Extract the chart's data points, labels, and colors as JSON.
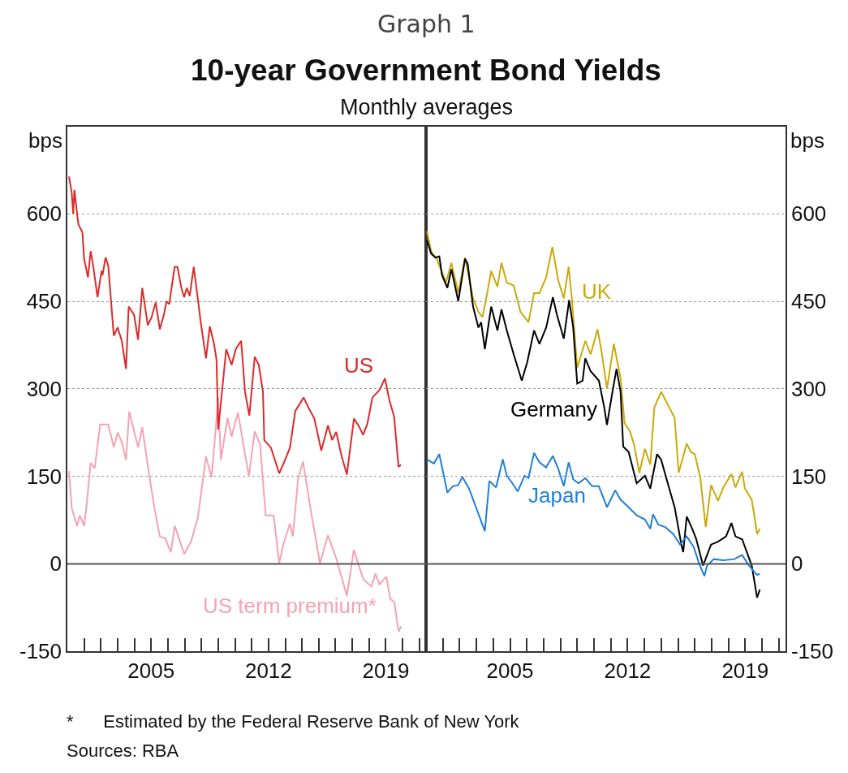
{
  "chart_data": [
    {
      "type": "line",
      "title": "10-year Government Bond Yields",
      "subtitle": "Monthly averages",
      "ylabel": "bps",
      "annotations": [
        "Graph 1",
        "*      Estimated by the Federal Reserve Bank of New York",
        "Sources: RBA"
      ],
      "xlim": [
        2000,
        2021.4
      ],
      "ylim": [
        -150,
        750
      ],
      "yticks": [
        -150,
        0,
        150,
        300,
        450,
        600
      ],
      "xticks": [
        {
          "value": 2001,
          "label": null
        },
        {
          "value": 2002,
          "label": null
        },
        {
          "value": 2003,
          "label": null
        },
        {
          "value": 2004,
          "label": null
        },
        2005,
        {
          "value": 2006,
          "label": null
        },
        {
          "value": 2007,
          "label": null
        },
        {
          "value": 2008,
          "label": null
        },
        {
          "value": 2009,
          "label": null
        },
        {
          "value": 2010,
          "label": null
        },
        {
          "value": 2011,
          "label": null
        },
        2012,
        {
          "value": 2013,
          "label": null
        },
        {
          "value": 2014,
          "label": null
        },
        {
          "value": 2015,
          "label": null
        },
        {
          "value": 2016,
          "label": null
        },
        {
          "value": 2017,
          "label": null
        },
        {
          "value": 2018,
          "label": null
        },
        2019,
        {
          "value": 2020,
          "label": null
        },
        {
          "value": 2021,
          "label": null
        }
      ],
      "grid": "y",
      "legend": false,
      "marker": "none",
      "line_style": "solid",
      "ref_lines": [
        {
          "axis": "y",
          "value": 0,
          "color": "#555555"
        }
      ],
      "series": [
        {
          "name": "US term premium*",
          "color": "#f4a3b5",
          "x": [
            2000.1,
            2000.26,
            2000.58,
            2000.74,
            2001.0,
            2001.15,
            2001.39,
            2001.63,
            2001.96,
            2002.44,
            2002.77,
            2003.0,
            2003.25,
            2003.5,
            2003.69,
            2004.22,
            2004.47,
            2004.87,
            2005.19,
            2005.52,
            2005.84,
            2006.17,
            2006.41,
            2006.97,
            2007.38,
            2007.78,
            2008.27,
            2008.6,
            2008.84,
            2009.0,
            2009.16,
            2009.56,
            2009.8,
            2010.18,
            2010.53,
            2010.83,
            2011.18,
            2011.5,
            2011.83,
            2012.31,
            2012.64,
            2012.88,
            2013.28,
            2013.45,
            2013.77,
            2014.06,
            2014.5,
            2015.07,
            2015.55,
            2016.04,
            2016.68,
            2017.09,
            2017.65,
            2018.14,
            2018.38,
            2018.62,
            2019.03,
            2019.27,
            2019.51,
            2019.76,
            2019.92
          ],
          "values": [
            159,
            96,
            65,
            83,
            65,
            101,
            173,
            164,
            239,
            239,
            200,
            225,
            209,
            178,
            261,
            200,
            234,
            155,
            96,
            47,
            44,
            20,
            65,
            17,
            38,
            78,
            184,
            148,
            227,
            285,
            178,
            250,
            218,
            259,
            200,
            150,
            227,
            205,
            83,
            83,
            1,
            33,
            69,
            47,
            146,
            175,
            96,
            1,
            49,
            10,
            -55,
            24,
            -26,
            -39,
            -17,
            -35,
            -22,
            -60,
            -66,
            -116,
            -107
          ]
        },
        {
          "name": "US",
          "color": "#dc2a2a",
          "x": [
            2000.1,
            2000.26,
            2000.35,
            2000.42,
            2000.58,
            2000.66,
            2000.9,
            2001.0,
            2001.23,
            2001.39,
            2001.55,
            2001.8,
            2002.04,
            2002.1,
            2002.28,
            2002.44,
            2002.77,
            2003.0,
            2003.25,
            2003.5,
            2003.66,
            2003.98,
            2004.22,
            2004.47,
            2004.8,
            2005.03,
            2005.27,
            2005.52,
            2005.76,
            2005.92,
            2006.08,
            2006.4,
            2006.57,
            2006.8,
            2006.97,
            2007.13,
            2007.3,
            2007.54,
            2007.78,
            2007.95,
            2008.27,
            2008.5,
            2008.75,
            2008.9,
            2009.0,
            2009.48,
            2009.8,
            2010.05,
            2010.37,
            2010.6,
            2010.86,
            2011.18,
            2011.42,
            2011.67,
            2011.75,
            2012.15,
            2012.64,
            2012.96,
            2013.28,
            2013.6,
            2014.1,
            2014.4,
            2014.74,
            2015.15,
            2015.55,
            2015.8,
            2016.04,
            2016.36,
            2016.68,
            2017.1,
            2017.41,
            2017.65,
            2017.9,
            2018.2,
            2018.63,
            2018.95,
            2019.2,
            2019.5,
            2019.76,
            2019.9
          ],
          "values": [
            664,
            636,
            600,
            641,
            600,
            582,
            568,
            523,
            491,
            536,
            509,
            457,
            502,
            495,
            525,
            511,
            391,
            405,
            382,
            334,
            441,
            427,
            384,
            473,
            409,
            423,
            448,
            402,
            427,
            450,
            445,
            509,
            509,
            473,
            457,
            473,
            459,
            509,
            455,
            416,
            352,
            407,
            377,
            350,
            230,
            368,
            341,
            368,
            382,
            295,
            254,
            355,
            341,
            295,
            212,
            199,
            155,
            176,
            199,
            262,
            285,
            267,
            249,
            194,
            237,
            212,
            226,
            185,
            153,
            249,
            235,
            221,
            240,
            285,
            298,
            318,
            282,
            252,
            166,
            170
          ]
        }
      ]
    },
    {
      "type": "line",
      "ylabel": "bps",
      "xlim": [
        2000,
        2021.4
      ],
      "ylim": [
        -150,
        750
      ],
      "yticks": [
        -150,
        0,
        150,
        300,
        450,
        600
      ],
      "xticks": [
        {
          "value": 2001,
          "label": null
        },
        {
          "value": 2002,
          "label": null
        },
        {
          "value": 2003,
          "label": null
        },
        {
          "value": 2004,
          "label": null
        },
        2005,
        {
          "value": 2006,
          "label": null
        },
        {
          "value": 2007,
          "label": null
        },
        {
          "value": 2008,
          "label": null
        },
        {
          "value": 2009,
          "label": null
        },
        {
          "value": 2010,
          "label": null
        },
        {
          "value": 2011,
          "label": null
        },
        2012,
        {
          "value": 2013,
          "label": null
        },
        {
          "value": 2014,
          "label": null
        },
        {
          "value": 2015,
          "label": null
        },
        {
          "value": 2016,
          "label": null
        },
        {
          "value": 2017,
          "label": null
        },
        {
          "value": 2018,
          "label": null
        },
        2019,
        {
          "value": 2020,
          "label": null
        },
        {
          "value": 2021,
          "label": null
        }
      ],
      "grid": "y",
      "legend": false,
      "marker": "none",
      "line_style": "solid",
      "ref_lines": [
        {
          "axis": "y",
          "value": 0,
          "color": "#555555"
        }
      ],
      "series": [
        {
          "name": "UK",
          "color": "#c9aa0a",
          "x": [
            2000.06,
            2000.3,
            2000.63,
            2000.95,
            2001.19,
            2001.51,
            2001.92,
            2002.32,
            2002.8,
            2003.12,
            2003.36,
            2003.61,
            2003.88,
            2004.25,
            2004.49,
            2004.81,
            2005.22,
            2005.62,
            2006.1,
            2006.43,
            2006.75,
            2007.15,
            2007.52,
            2007.87,
            2008.2,
            2008.49,
            2008.68,
            2009.0,
            2009.24,
            2009.48,
            2009.8,
            2010.21,
            2010.45,
            2010.77,
            2011.18,
            2011.58,
            2011.82,
            2012.14,
            2012.38,
            2012.7,
            2013.03,
            2013.35,
            2013.59,
            2014.0,
            2014.48,
            2014.8,
            2015.04,
            2015.52,
            2015.76,
            2016.0,
            2016.33,
            2016.65,
            2016.97,
            2017.38,
            2017.7,
            2018.18,
            2018.42,
            2018.82,
            2018.98,
            2019.39,
            2019.71,
            2019.87
          ],
          "values": [
            570,
            536,
            523,
            500,
            482,
            516,
            464,
            525,
            455,
            432,
            423,
            459,
            502,
            475,
            516,
            482,
            477,
            432,
            414,
            464,
            464,
            491,
            543,
            486,
            455,
            509,
            455,
            336,
            359,
            382,
            359,
            402,
            364,
            300,
            377,
            318,
            241,
            227,
            205,
            156,
            197,
            170,
            268,
            295,
            268,
            250,
            156,
            206,
            192,
            188,
            147,
            63,
            135,
            108,
            131,
            154,
            131,
            158,
            129,
            110,
            51,
            60
          ]
        },
        {
          "name": "Germany",
          "color": "#000000",
          "x": [
            2000.06,
            2000.3,
            2000.55,
            2000.79,
            2000.95,
            2001.27,
            2001.51,
            2001.92,
            2002.32,
            2002.48,
            2002.8,
            2003.12,
            2003.28,
            2003.5,
            2003.88,
            2004.25,
            2004.49,
            2004.81,
            2005.22,
            2005.7,
            2006.02,
            2006.43,
            2006.75,
            2007.15,
            2007.55,
            2007.79,
            2008.2,
            2008.52,
            2008.76,
            2009.0,
            2009.32,
            2009.48,
            2009.8,
            2010.29,
            2010.61,
            2010.77,
            2011.1,
            2011.34,
            2011.58,
            2011.74,
            2012.06,
            2012.54,
            2013.03,
            2013.35,
            2013.75,
            2013.99,
            2014.48,
            2014.8,
            2015.2,
            2015.31,
            2015.52,
            2015.85,
            2016.09,
            2016.49,
            2016.97,
            2017.38,
            2017.86,
            2018.18,
            2018.42,
            2018.82,
            2019.39,
            2019.71,
            2019.87
          ],
          "values": [
            555,
            532,
            525,
            527,
            495,
            473,
            505,
            450,
            523,
            514,
            441,
            405,
            414,
            368,
            441,
            400,
            436,
            400,
            359,
            314,
            345,
            400,
            377,
            405,
            457,
            427,
            386,
            452,
            405,
            309,
            314,
            352,
            330,
            314,
            268,
            238,
            295,
            334,
            295,
            201,
            192,
            138,
            151,
            129,
            188,
            179,
            129,
            97,
            33,
            20,
            81,
            60,
            42,
            -3,
            33,
            38,
            47,
            70,
            47,
            42,
            -3,
            -58,
            -44
          ]
        },
        {
          "name": "Japan",
          "color": "#1f7fd8",
          "x": [
            2000.06,
            2000.47,
            2000.79,
            2001.27,
            2001.59,
            2001.92,
            2002.16,
            2002.56,
            2003.04,
            2003.5,
            2003.77,
            2004.17,
            2004.57,
            2004.81,
            2005.14,
            2005.46,
            2005.86,
            2006.1,
            2006.43,
            2006.75,
            2007.15,
            2007.55,
            2007.87,
            2008.2,
            2008.49,
            2008.76,
            2009.08,
            2009.48,
            2009.89,
            2010.29,
            2010.77,
            2011.26,
            2011.58,
            2012.06,
            2012.54,
            2013.03,
            2013.35,
            2013.51,
            2013.83,
            2014.24,
            2014.72,
            2015.12,
            2015.52,
            2015.93,
            2016.25,
            2016.57,
            2016.73,
            2017.13,
            2017.7,
            2018.34,
            2018.82,
            2019.23,
            2019.71,
            2019.87
          ],
          "values": [
            179,
            172,
            188,
            122,
            133,
            135,
            149,
            129,
            92,
            56,
            142,
            131,
            179,
            151,
            138,
            124,
            151,
            147,
            190,
            174,
            165,
            185,
            163,
            133,
            174,
            145,
            138,
            147,
            133,
            133,
            97,
            126,
            110,
            97,
            83,
            76,
            60,
            85,
            67,
            63,
            51,
            33,
            47,
            29,
            1,
            -21,
            -3,
            8,
            6,
            8,
            15,
            -3,
            -19,
            -17
          ]
        }
      ]
    }
  ]
}
